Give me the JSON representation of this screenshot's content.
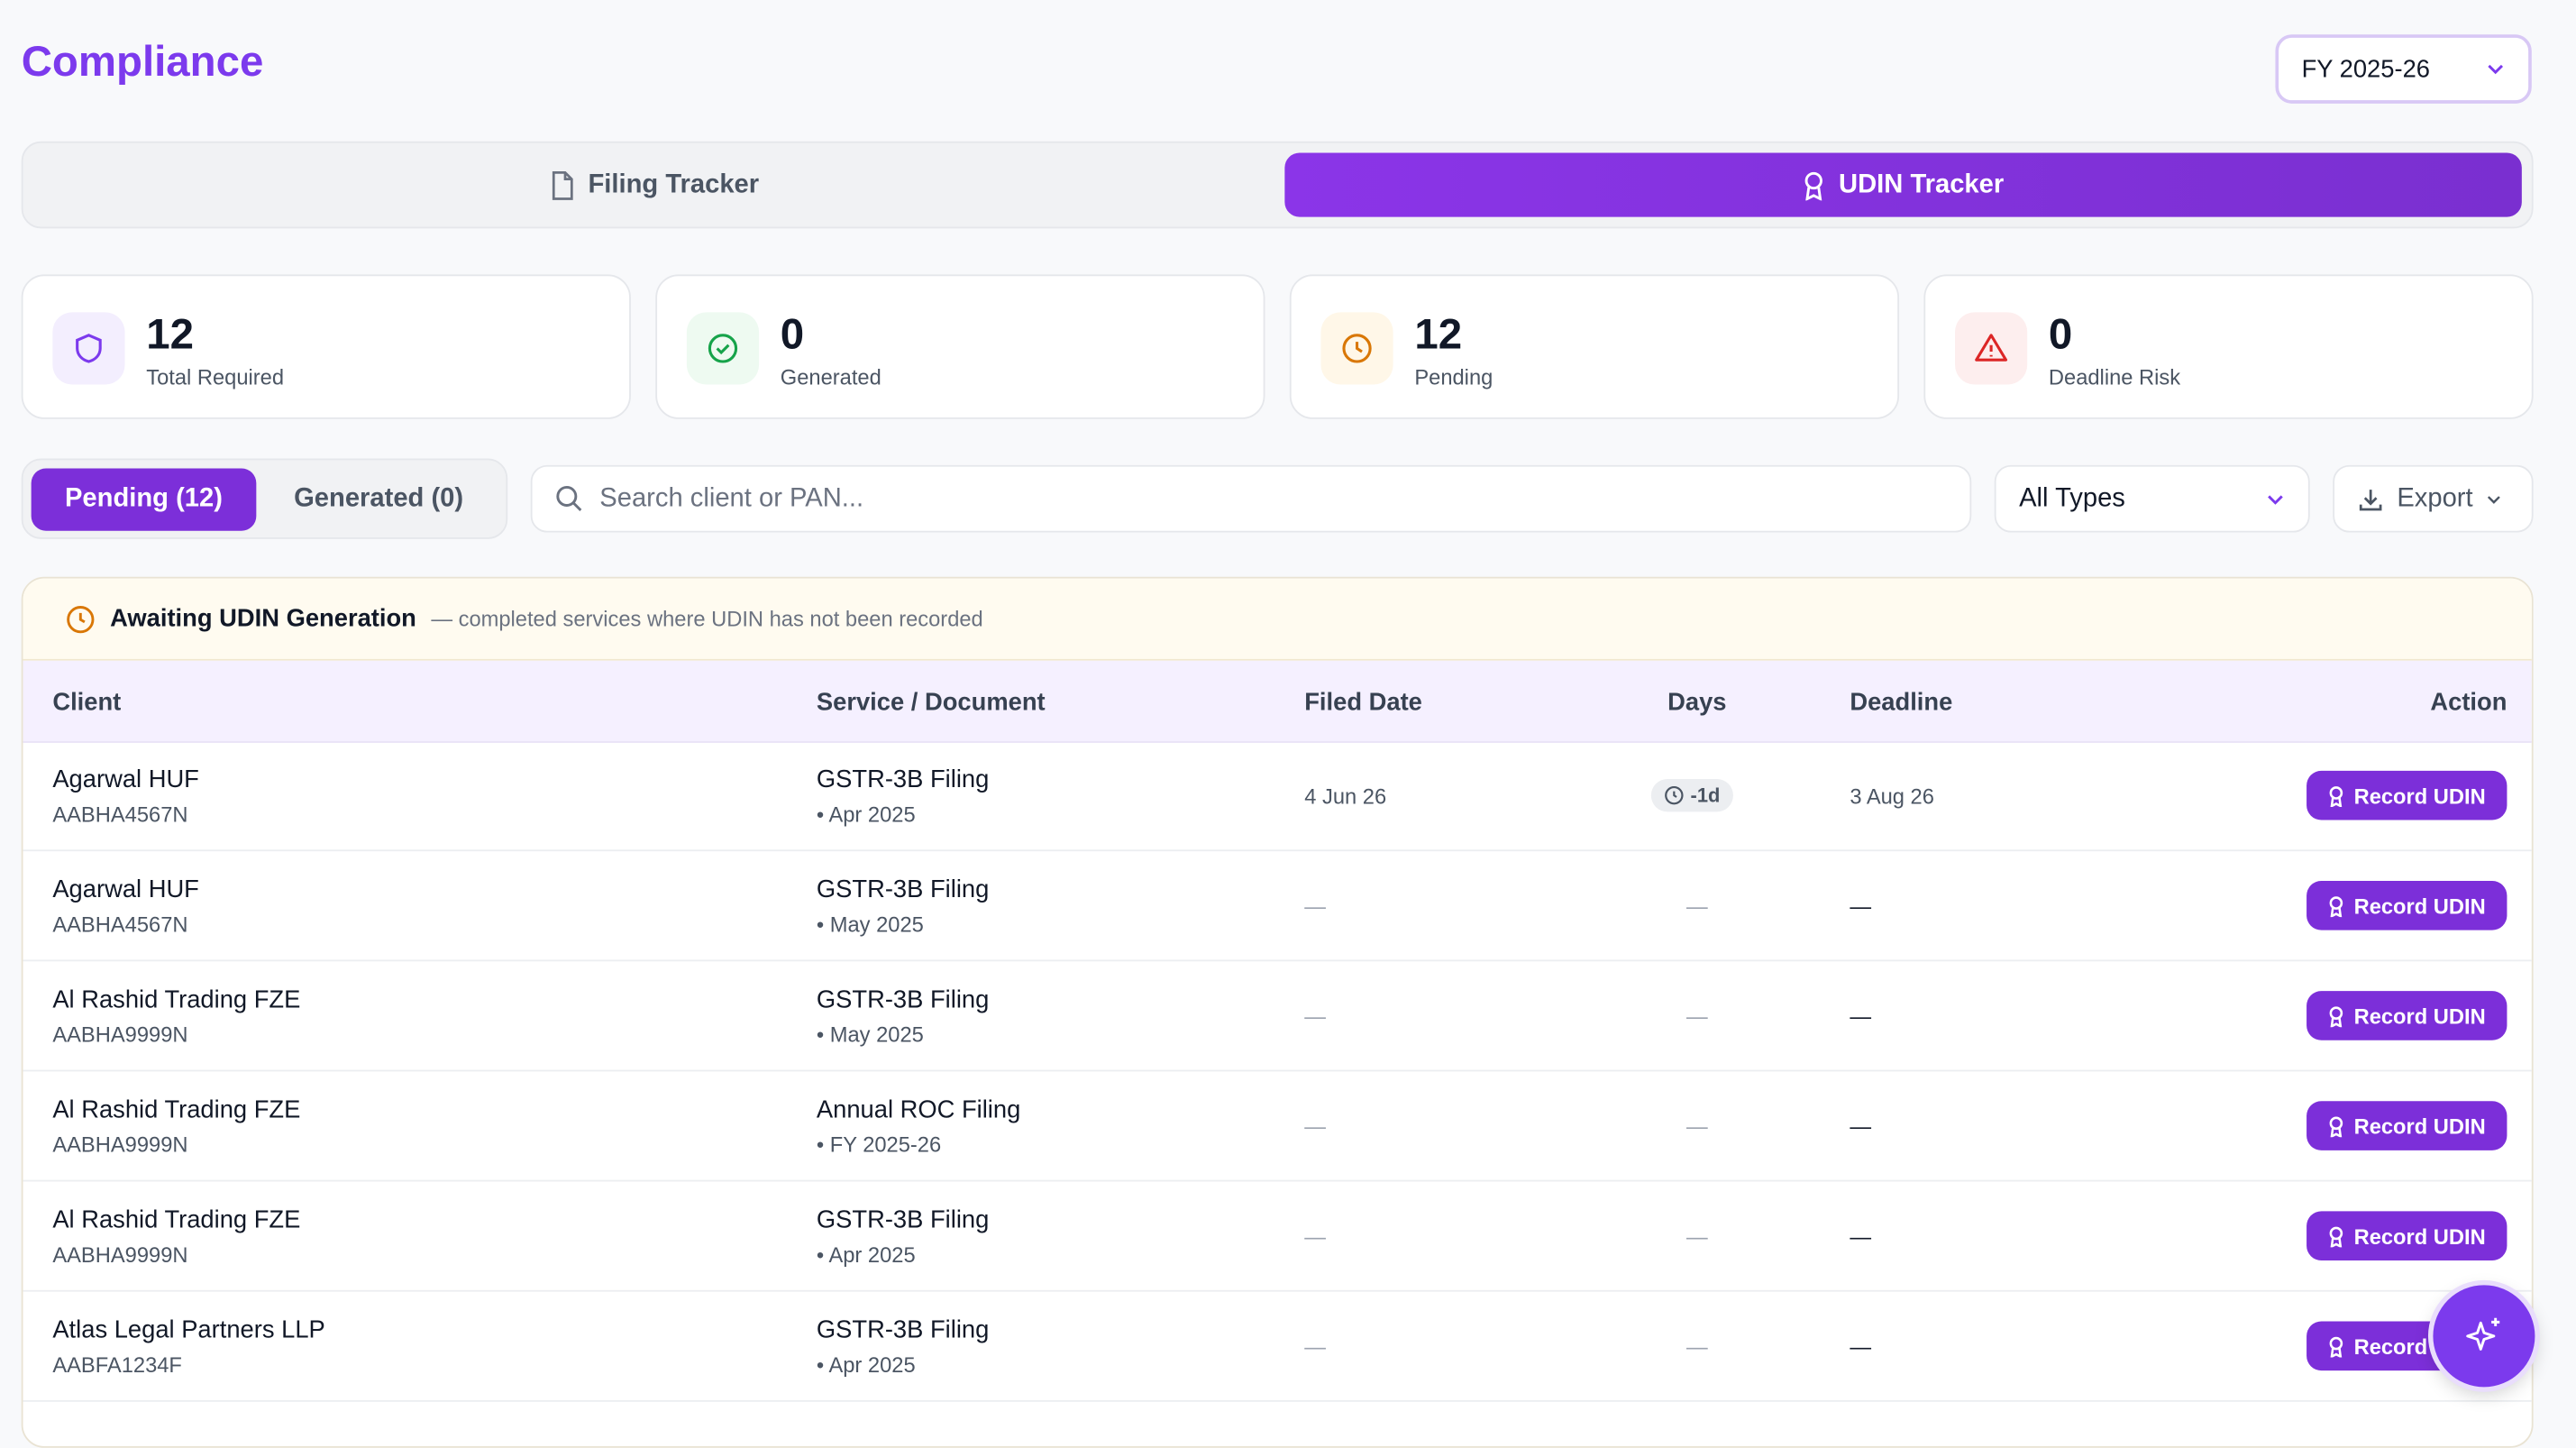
{
  "header": {
    "title": "Compliance",
    "fy_select": "FY 2025-26"
  },
  "tabs": [
    "Filing Tracker",
    "UDIN Tracker"
  ],
  "stats": [
    {
      "value": "12",
      "label": "Total Required"
    },
    {
      "value": "0",
      "label": "Generated"
    },
    {
      "value": "12",
      "label": "Pending"
    },
    {
      "value": "0",
      "label": "Deadline Risk"
    }
  ],
  "filters": {
    "segments": [
      "Pending (12)",
      "Generated (0)"
    ],
    "search_placeholder": "Search client or PAN...",
    "type_select": "All Types",
    "export": "Export"
  },
  "section": {
    "title": "Awaiting UDIN Generation",
    "subtitle": "— completed services where UDIN has not been recorded"
  },
  "table": {
    "columns": [
      "Client",
      "Service / Document",
      "Filed Date",
      "Days",
      "Deadline",
      "Action"
    ],
    "rows": [
      {
        "client": "Agarwal HUF",
        "pan": "AABHA4567N",
        "service": "GSTR-3B Filing",
        "period": "• Apr 2025",
        "filed": "4 Jun 26",
        "days": "-1d",
        "deadline": "3 Aug 26",
        "action": "Record UDIN"
      },
      {
        "client": "Agarwal HUF",
        "pan": "AABHA4567N",
        "service": "GSTR-3B Filing",
        "period": "• May 2025",
        "filed": "—",
        "days": "—",
        "deadline": "—",
        "action": "Record UDIN"
      },
      {
        "client": "Al Rashid Trading FZE",
        "pan": "AABHA9999N",
        "service": "GSTR-3B Filing",
        "period": "• May 2025",
        "filed": "—",
        "days": "—",
        "deadline": "—",
        "action": "Record UDIN"
      },
      {
        "client": "Al Rashid Trading FZE",
        "pan": "AABHA9999N",
        "service": "Annual ROC Filing",
        "period": "• FY 2025-26",
        "filed": "—",
        "days": "—",
        "deadline": "—",
        "action": "Record UDIN"
      },
      {
        "client": "Al Rashid Trading FZE",
        "pan": "AABHA9999N",
        "service": "GSTR-3B Filing",
        "period": "• Apr 2025",
        "filed": "—",
        "days": "—",
        "deadline": "—",
        "action": "Record UDIN"
      },
      {
        "client": "Atlas Legal Partners LLP",
        "pan": "AABFA1234F",
        "service": "GSTR-3B Filing",
        "period": "• Apr 2025",
        "filed": "—",
        "days": "—",
        "deadline": "—",
        "action": "Record UDIN"
      }
    ]
  }
}
